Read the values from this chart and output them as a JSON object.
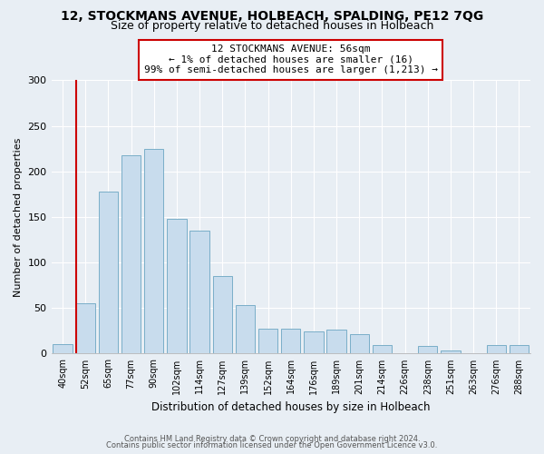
{
  "title1": "12, STOCKMANS AVENUE, HOLBEACH, SPALDING, PE12 7QG",
  "title2": "Size of property relative to detached houses in Holbeach",
  "xlabel": "Distribution of detached houses by size in Holbeach",
  "ylabel": "Number of detached properties",
  "bin_labels": [
    "40sqm",
    "52sqm",
    "65sqm",
    "77sqm",
    "90sqm",
    "102sqm",
    "114sqm",
    "127sqm",
    "139sqm",
    "152sqm",
    "164sqm",
    "176sqm",
    "189sqm",
    "201sqm",
    "214sqm",
    "226sqm",
    "238sqm",
    "251sqm",
    "263sqm",
    "276sqm",
    "288sqm"
  ],
  "bar_heights": [
    10,
    55,
    178,
    218,
    225,
    148,
    135,
    85,
    53,
    27,
    27,
    24,
    26,
    21,
    9,
    0,
    8,
    3,
    0,
    9,
    9
  ],
  "bar_color": "#c8dced",
  "bar_edge_color": "#7aaec8",
  "vline_x": 1.0,
  "vline_color": "#cc0000",
  "annotation_line1": "12 STOCKMANS AVENUE: 56sqm",
  "annotation_line2": "← 1% of detached houses are smaller (16)",
  "annotation_line3": "99% of semi-detached houses are larger (1,213) →",
  "annotation_box_color": "#ffffff",
  "annotation_box_edge": "#cc0000",
  "ylim": [
    0,
    300
  ],
  "yticks": [
    0,
    50,
    100,
    150,
    200,
    250,
    300
  ],
  "footer1": "Contains HM Land Registry data © Crown copyright and database right 2024.",
  "footer2": "Contains public sector information licensed under the Open Government Licence v3.0.",
  "bg_color": "#e8eef4",
  "plot_bg_color": "#e8eef4",
  "grid_color": "#ffffff",
  "title1_fontsize": 10,
  "title2_fontsize": 9
}
